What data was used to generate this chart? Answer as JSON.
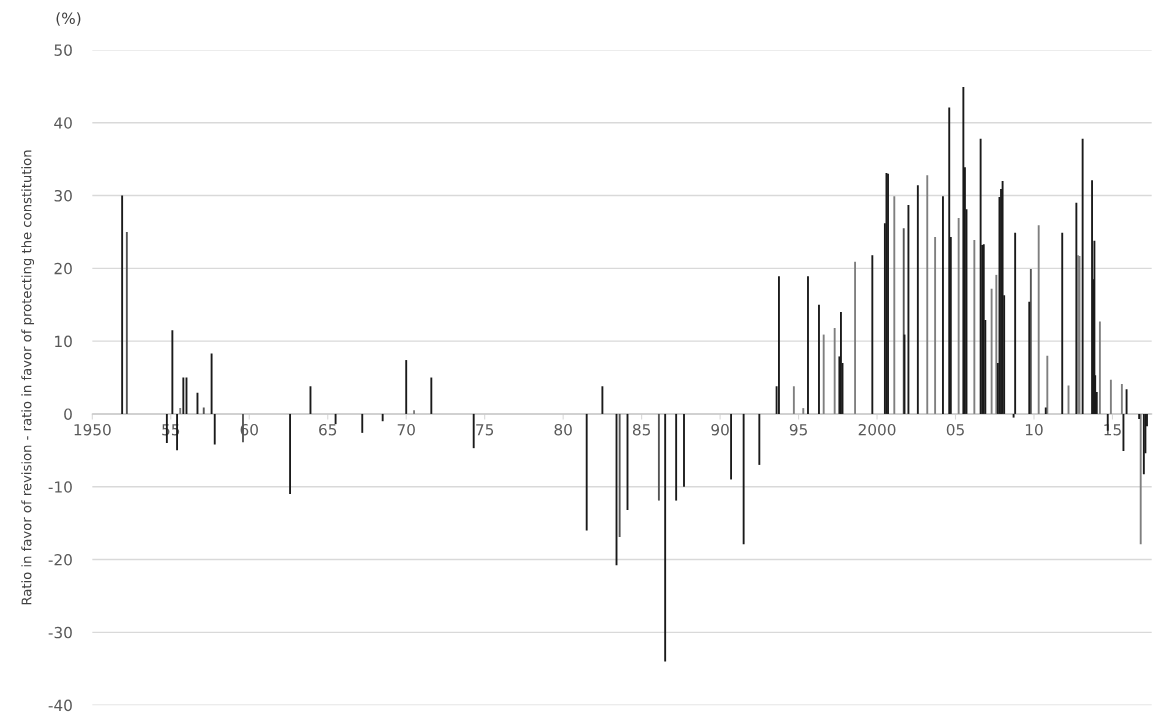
{
  "chart_data": {
    "type": "bar",
    "ylabel": "Ratio in favor of revision - ratio in favor of protecting the constitution",
    "annotations": [
      "(%)"
    ],
    "x": [
      1951.9,
      1952.2,
      1954.75,
      1955.1,
      1955.4,
      1955.6,
      1955.8,
      1956.0,
      1956.7,
      1957.1,
      1957.6,
      1957.8,
      1959.6,
      1962.6,
      1963.9,
      1965.5,
      1967.2,
      1968.5,
      1970.0,
      1970.5,
      1971.6,
      1974.3,
      1981.5,
      1982.5,
      1983.4,
      1983.6,
      1984.1,
      1986.1,
      1986.5,
      1987.2,
      1987.7,
      1990.7,
      1991.5,
      1992.5,
      1993.6,
      1993.75,
      1994.7,
      1995.3,
      1995.6,
      1996.3,
      1996.6,
      1997.3,
      1997.6,
      1997.7,
      1997.8,
      1998.6,
      1999.7,
      2000.5,
      2000.6,
      2000.7,
      2001.1,
      2001.7,
      2001.75,
      2002.0,
      2002.6,
      2003.2,
      2003.7,
      2004.2,
      2004.6,
      2004.7,
      2005.2,
      2005.5,
      2005.6,
      2005.7,
      2006.2,
      2006.6,
      2006.7,
      2006.8,
      2006.9,
      2007.3,
      2007.6,
      2007.7,
      2007.8,
      2007.9,
      2008.0,
      2008.1,
      2008.7,
      2008.8,
      2009.7,
      2009.8,
      2010.3,
      2010.75,
      2010.85,
      2011.8,
      2012.2,
      2012.7,
      2012.8,
      2012.9,
      2013.1,
      2013.7,
      2013.8,
      2013.85,
      2013.9,
      2014.0,
      2014.2,
      2014.7,
      2014.9,
      2015.6,
      2015.7,
      2015.9,
      2016.7,
      2016.8,
      2017.0,
      2017.1,
      2017.2
    ],
    "values": [
      30,
      25,
      -4,
      11.5,
      -5,
      0.8,
      5,
      5,
      2.9,
      0.9,
      8.3,
      -4.2,
      -3.9,
      -11,
      3.8,
      -1.4,
      -2.6,
      -1,
      7.4,
      0.5,
      5,
      -4.7,
      -16,
      3.8,
      -20.8,
      -16.9,
      -13.2,
      -11.9,
      -34,
      -11.9,
      -10,
      -9,
      -17.9,
      -7,
      3.8,
      18.9,
      3.8,
      0.8,
      18.9,
      15,
      10.9,
      11.8,
      7.9,
      14,
      7,
      20.9,
      21.8,
      26.2,
      33.1,
      33,
      29.9,
      25.5,
      10.9,
      28.7,
      31.4,
      32.8,
      24.3,
      29.9,
      42.1,
      24.3,
      26.9,
      44.9,
      33.9,
      28.1,
      23.9,
      37.8,
      23.2,
      23.3,
      12.9,
      17.2,
      19.1,
      7,
      29.8,
      30.9,
      32,
      16.3,
      -0.5,
      24.9,
      15.4,
      19.9,
      25.9,
      0.9,
      8,
      24.9,
      3.9,
      29,
      21.8,
      21.7,
      37.8,
      32.1,
      18.5,
      23.8,
      5.3,
      3,
      12.7,
      -2.3,
      4.7,
      4.1,
      -5.1,
      3.4,
      -0.7,
      -17.9,
      -8.3,
      -5.4,
      -1.7
    ],
    "colors": [
      "#1a1a1a",
      "#555555",
      "#1a1a1a",
      "#1a1a1a",
      "#1a1a1a",
      "#7f7f7f",
      "#1a1a1a",
      "#1a1a1a",
      "#1a1a1a",
      "#555555",
      "#1a1a1a",
      "#1a1a1a",
      "#555555",
      "#1a1a1a",
      "#1a1a1a",
      "#1a1a1a",
      "#1a1a1a",
      "#1a1a1a",
      "#1a1a1a",
      "#7f7f7f",
      "#1a1a1a",
      "#1a1a1a",
      "#1a1a1a",
      "#1a1a1a",
      "#1a1a1a",
      "#555555",
      "#1a1a1a",
      "#555555",
      "#1a1a1a",
      "#1a1a1a",
      "#1a1a1a",
      "#1a1a1a",
      "#1a1a1a",
      "#1a1a1a",
      "#1a1a1a",
      "#1a1a1a",
      "#7f7f7f",
      "#7f7f7f",
      "#1a1a1a",
      "#1a1a1a",
      "#7f7f7f",
      "#7f7f7f",
      "#1a1a1a",
      "#1a1a1a",
      "#1a1a1a",
      "#7f7f7f",
      "#1a1a1a",
      "#1a1a1a",
      "#1a1a1a",
      "#1a1a1a",
      "#7f7f7f",
      "#555555",
      "#1a1a1a",
      "#1a1a1a",
      "#1a1a1a",
      "#7f7f7f",
      "#7f7f7f",
      "#1a1a1a",
      "#1a1a1a",
      "#1a1a1a",
      "#7f7f7f",
      "#1a1a1a",
      "#1a1a1a",
      "#1a1a1a",
      "#7f7f7f",
      "#1a1a1a",
      "#1a1a1a",
      "#1a1a1a",
      "#1a1a1a",
      "#7f7f7f",
      "#7f7f7f",
      "#1a1a1a",
      "#1a1a1a",
      "#1a1a1a",
      "#1a1a1a",
      "#1a1a1a",
      "#1a1a1a",
      "#1a1a1a",
      "#1a1a1a",
      "#555555",
      "#7f7f7f",
      "#1a1a1a",
      "#7f7f7f",
      "#1a1a1a",
      "#7f7f7f",
      "#1a1a1a",
      "#7f7f7f",
      "#7f7f7f",
      "#1a1a1a",
      "#1a1a1a",
      "#1a1a1a",
      "#1a1a1a",
      "#1a1a1a",
      "#1a1a1a",
      "#7f7f7f",
      "#1a1a1a",
      "#7f7f7f",
      "#7f7f7f",
      "#1a1a1a",
      "#1a1a1a",
      "#1a1a1a",
      "#7f7f7f",
      "#1a1a1a",
      "#1a1a1a",
      "#1a1a1a"
    ],
    "xlim": [
      1950,
      2017.5
    ],
    "xticks": [
      {
        "value": 1950,
        "label": "1950"
      },
      {
        "value": 1955,
        "label": "55"
      },
      {
        "value": 1960,
        "label": "60"
      },
      {
        "value": 1965,
        "label": "65"
      },
      {
        "value": 1970,
        "label": "70"
      },
      {
        "value": 1975,
        "label": "75"
      },
      {
        "value": 1980,
        "label": "80"
      },
      {
        "value": 1985,
        "label": "85"
      },
      {
        "value": 1990,
        "label": "90"
      },
      {
        "value": 1995,
        "label": "95"
      },
      {
        "value": 2000,
        "label": "2000"
      },
      {
        "value": 2005,
        "label": "05"
      },
      {
        "value": 2010,
        "label": "10"
      },
      {
        "value": 2015,
        "label": "15"
      }
    ],
    "ylim": [
      -40,
      50
    ],
    "yticks": [
      -40,
      -30,
      -20,
      -10,
      0,
      10,
      20,
      30,
      40,
      50
    ],
    "grid": "y"
  }
}
